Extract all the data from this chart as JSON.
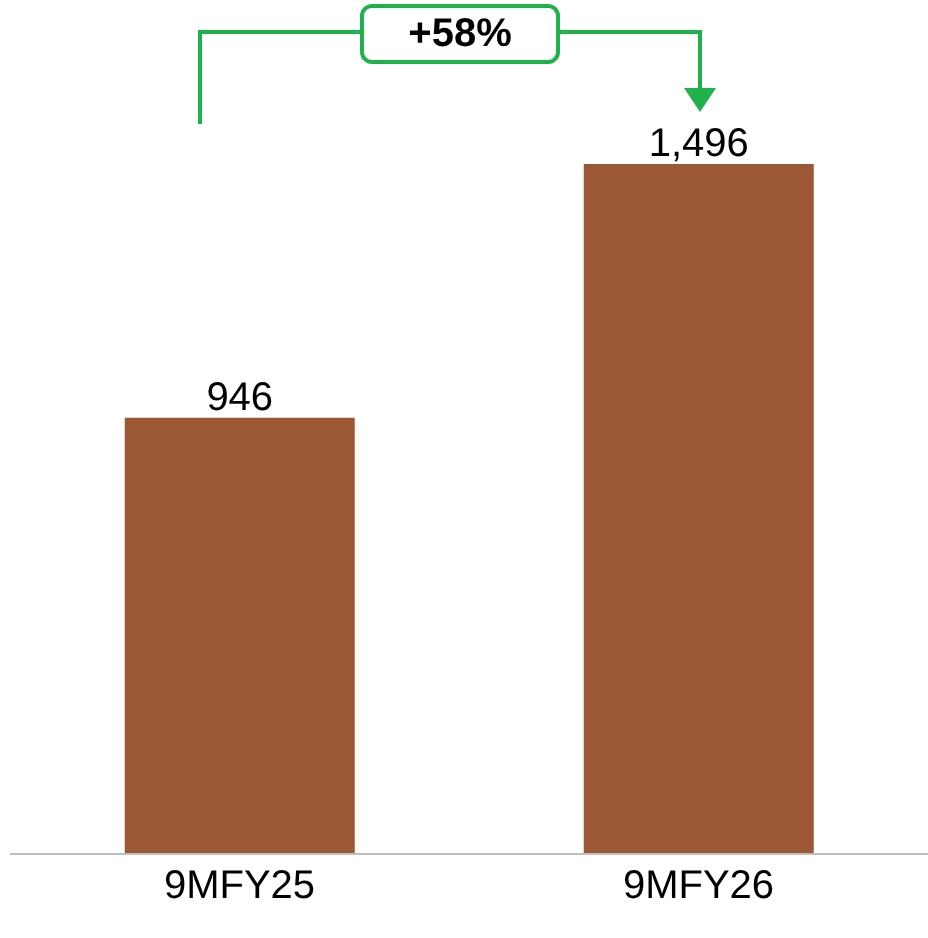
{
  "chart_data": {
    "type": "bar",
    "categories": [
      "9MFY25",
      "9MFY26"
    ],
    "values": [
      946,
      1496
    ],
    "value_labels": [
      "946",
      "1,496"
    ],
    "color": "#9c5835",
    "annotations": [
      "+58%"
    ],
    "tick_labels": "x"
  }
}
